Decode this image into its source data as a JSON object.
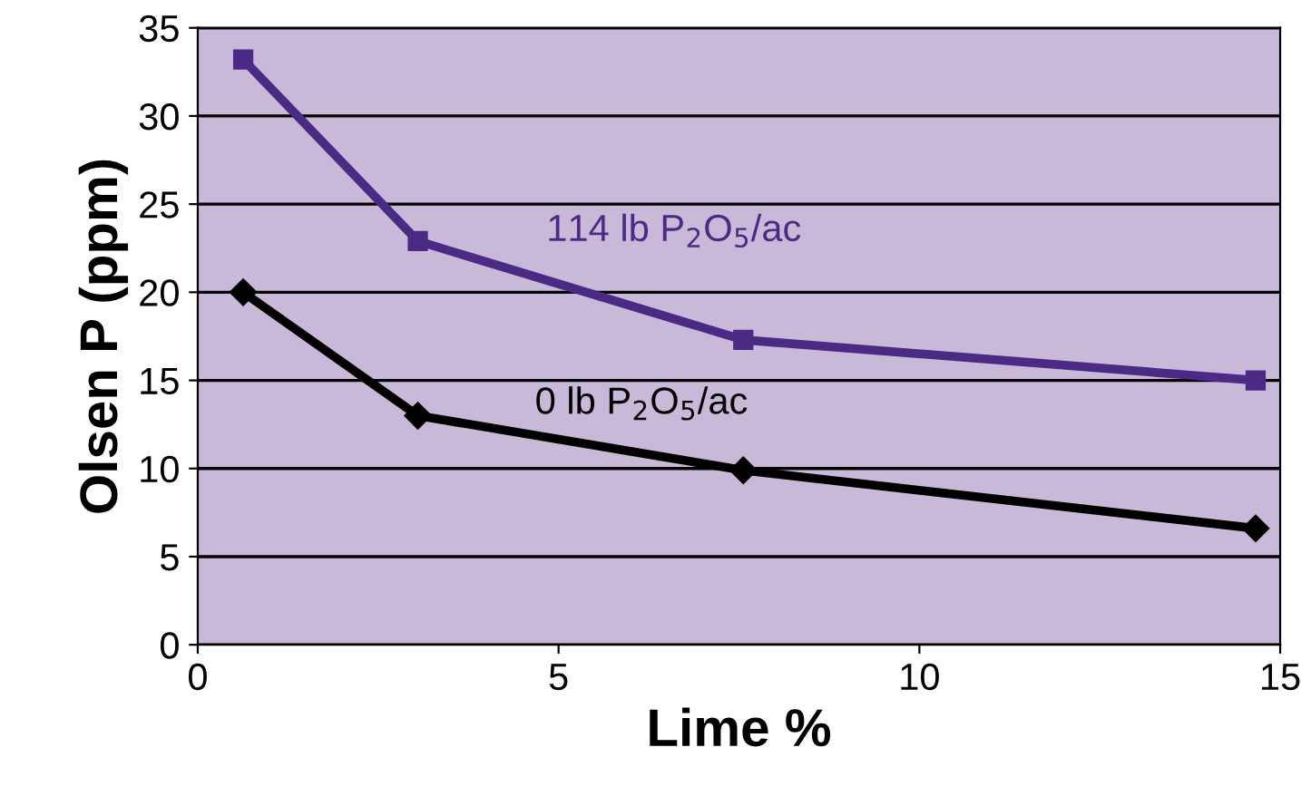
{
  "chart_data": {
    "type": "line",
    "xlabel": "Lime %",
    "ylabel": "Olsen P (ppm)",
    "xlim": [
      0,
      15
    ],
    "xticks": [
      0,
      5,
      10,
      15
    ],
    "ylim": [
      0,
      35
    ],
    "yticks": [
      0,
      5,
      10,
      15,
      20,
      25,
      30,
      35
    ],
    "grid": "y",
    "legend": false,
    "series": [
      {
        "color": "#4b2a85",
        "marker": "square",
        "x": [
          0.63,
          3.05,
          7.56,
          14.66
        ],
        "values": [
          33.2,
          22.9,
          17.3,
          15.0
        ]
      },
      {
        "color": "#000000",
        "marker": "diamond",
        "x": [
          0.63,
          3.05,
          7.56,
          14.66
        ],
        "values": [
          20.0,
          13.0,
          9.9,
          6.6
        ]
      }
    ],
    "annotations": [
      "114 lb P$_{2}$O$_{5}$/ac",
      "0 lb P$_{2}$O$_{5}$/ac"
    ]
  }
}
